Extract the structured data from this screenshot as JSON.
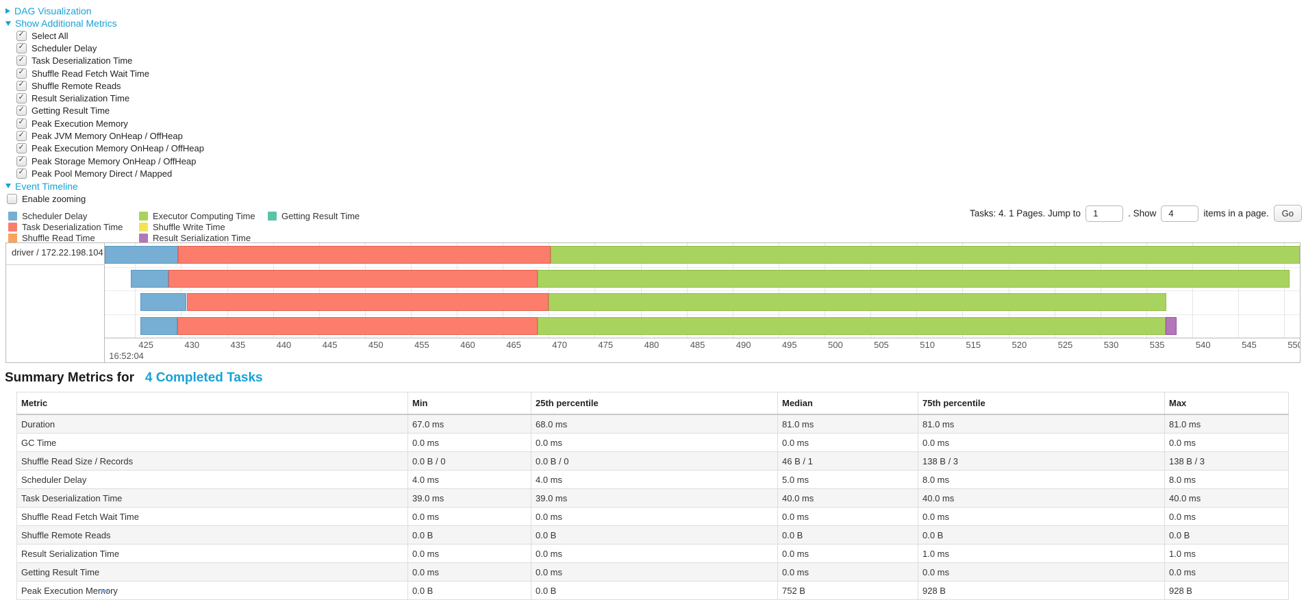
{
  "theme": {
    "link_color": "#16a2d7"
  },
  "controls": {
    "dag_label": "DAG Visualization",
    "additional_metrics_label": "Show Additional Metrics",
    "event_timeline_label": "Event Timeline",
    "enable_zooming_label": "Enable zooming",
    "enable_zooming_checked": false,
    "metric_checkboxes": [
      {
        "label": "Select All",
        "checked": true
      },
      {
        "label": "Scheduler Delay",
        "checked": true
      },
      {
        "label": "Task Deserialization Time",
        "checked": true
      },
      {
        "label": "Shuffle Read Fetch Wait Time",
        "checked": true
      },
      {
        "label": "Shuffle Remote Reads",
        "checked": true
      },
      {
        "label": "Result Serialization Time",
        "checked": true
      },
      {
        "label": "Getting Result Time",
        "checked": true
      },
      {
        "label": "Peak Execution Memory",
        "checked": true
      },
      {
        "label": "Peak JVM Memory OnHeap / OffHeap",
        "checked": true
      },
      {
        "label": "Peak Execution Memory OnHeap / OffHeap",
        "checked": true
      },
      {
        "label": "Peak Storage Memory OnHeap / OffHeap",
        "checked": true
      },
      {
        "label": "Peak Pool Memory Direct / Mapped",
        "checked": true
      }
    ]
  },
  "pagination": {
    "prefix": "Tasks: 4. 1 Pages. Jump to",
    "jump_value": "1",
    "mid": ". Show",
    "show_value": "4",
    "suffix": "items in a page.",
    "go_label": "Go"
  },
  "chart_data": {
    "type": "timeline",
    "group_label": "driver / 172.22.198.104",
    "start_time_label": "16:52:04",
    "axis_ticks": [
      425,
      430,
      435,
      440,
      445,
      450,
      455,
      460,
      465,
      470,
      475,
      480,
      485,
      490,
      495,
      500,
      505,
      510,
      515,
      520,
      525,
      530,
      535,
      540,
      545,
      550
    ],
    "domain": [
      421.7,
      551.7
    ],
    "legend": [
      {
        "key": "scheduler_delay",
        "label": "Scheduler Delay",
        "color": "#76AFD3",
        "border": "#5C97BE",
        "col": 0
      },
      {
        "key": "task_deserialization",
        "label": "Task Deserialization Time",
        "color": "#FC7D6C",
        "border": "#E4604F",
        "col": 0
      },
      {
        "key": "shuffle_read",
        "label": "Shuffle Read Time",
        "color": "#F9A45C",
        "border": "#E08B43",
        "col": 0
      },
      {
        "key": "executor_computing",
        "label": "Executor Computing Time",
        "color": "#A9D35F",
        "border": "#92BE48",
        "col": 1
      },
      {
        "key": "shuffle_write",
        "label": "Shuffle Write Time",
        "color": "#F4E356",
        "border": "#D9C83D",
        "col": 1
      },
      {
        "key": "result_serialization",
        "label": "Result Serialization Time",
        "color": "#B376B8",
        "border": "#94549A",
        "col": 1
      },
      {
        "key": "getting_result",
        "label": "Getting Result Time",
        "color": "#59C4A8",
        "border": "#3FA98D",
        "col": 2
      }
    ],
    "tasks": [
      {
        "segments": [
          {
            "key": "scheduler_delay",
            "start": 421.7,
            "end": 429.7
          },
          {
            "key": "task_deserialization",
            "start": 429.7,
            "end": 470.2
          },
          {
            "key": "executor_computing",
            "start": 470.2,
            "end": 551.7
          }
        ]
      },
      {
        "segments": [
          {
            "key": "scheduler_delay",
            "start": 424.5,
            "end": 428.6
          },
          {
            "key": "task_deserialization",
            "start": 428.6,
            "end": 468.8
          },
          {
            "key": "executor_computing",
            "start": 468.8,
            "end": 550.6
          }
        ]
      },
      {
        "segments": [
          {
            "key": "scheduler_delay",
            "start": 425.6,
            "end": 430.6
          },
          {
            "key": "task_deserialization",
            "start": 430.6,
            "end": 470.0
          },
          {
            "key": "executor_computing",
            "start": 470.0,
            "end": 537.2
          }
        ]
      },
      {
        "segments": [
          {
            "key": "scheduler_delay",
            "start": 425.6,
            "end": 429.6
          },
          {
            "key": "task_deserialization",
            "start": 429.6,
            "end": 468.8
          },
          {
            "key": "executor_computing",
            "start": 468.8,
            "end": 537.1
          },
          {
            "key": "result_serialization",
            "start": 537.1,
            "end": 538.3
          }
        ]
      }
    ]
  },
  "summary": {
    "title_prefix": "Summary Metrics for",
    "title_link": "4 Completed Tasks",
    "table": {
      "headers": [
        "Metric",
        "Min",
        "25th percentile",
        "Median",
        "75th percentile",
        "Max"
      ],
      "rows": [
        [
          "Duration",
          "67.0 ms",
          "68.0 ms",
          "81.0 ms",
          "81.0 ms",
          "81.0 ms"
        ],
        [
          "GC Time",
          "0.0 ms",
          "0.0 ms",
          "0.0 ms",
          "0.0 ms",
          "0.0 ms"
        ],
        [
          "Shuffle Read Size / Records",
          "0.0 B / 0",
          "0.0 B / 0",
          "46 B / 1",
          "138 B / 3",
          "138 B / 3"
        ],
        [
          "Scheduler Delay",
          "4.0 ms",
          "4.0 ms",
          "5.0 ms",
          "8.0 ms",
          "8.0 ms"
        ],
        [
          "Task Deserialization Time",
          "39.0 ms",
          "39.0 ms",
          "40.0 ms",
          "40.0 ms",
          "40.0 ms"
        ],
        [
          "Shuffle Read Fetch Wait Time",
          "0.0 ms",
          "0.0 ms",
          "0.0 ms",
          "0.0 ms",
          "0.0 ms"
        ],
        [
          "Shuffle Remote Reads",
          "0.0 B",
          "0.0 B",
          "0.0 B",
          "0.0 B",
          "0.0 B"
        ],
        [
          "Result Serialization Time",
          "0.0 ms",
          "0.0 ms",
          "0.0 ms",
          "1.0 ms",
          "1.0 ms"
        ],
        [
          "Getting Result Time",
          "0.0 ms",
          "0.0 ms",
          "0.0 ms",
          "0.0 ms",
          "0.0 ms"
        ],
        [
          "Peak Execution Memory",
          "0.0 B",
          "0.0 B",
          "752 B",
          "928 B",
          "928 B"
        ]
      ]
    }
  }
}
